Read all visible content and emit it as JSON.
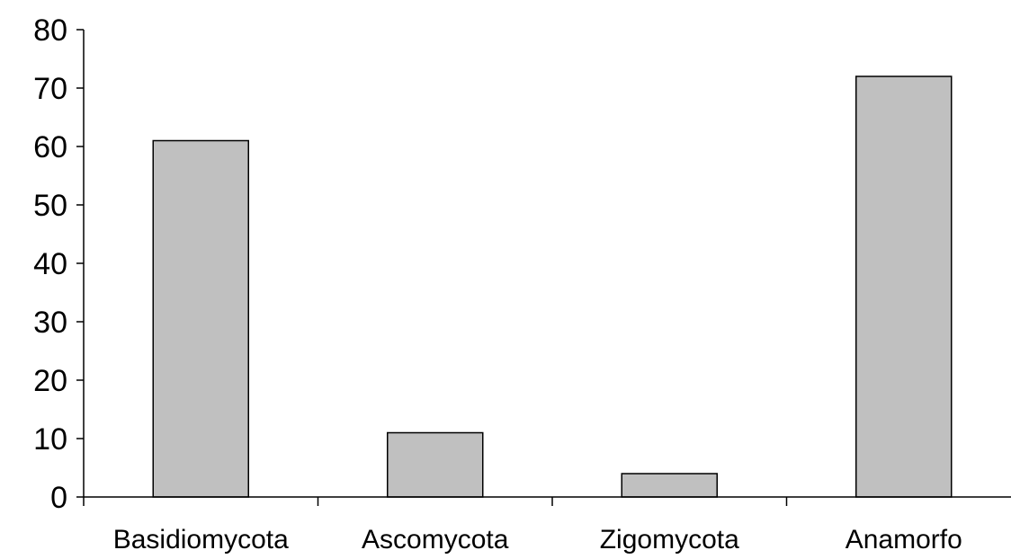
{
  "chart_data": {
    "type": "bar",
    "categories": [
      "Basidiomycota",
      "Ascomycota",
      "Zigomycota",
      "Anamorfo"
    ],
    "values": [
      61,
      11,
      4,
      72
    ],
    "title": "",
    "xlabel": "",
    "ylabel": "",
    "ylim": [
      0,
      80
    ],
    "yticks": [
      0,
      10,
      20,
      30,
      40,
      50,
      60,
      70,
      80
    ],
    "grid": false,
    "legend": "none",
    "bar_color": "#c0c0c0",
    "bar_edge_color": "#000000",
    "axis_color": "#000000"
  }
}
